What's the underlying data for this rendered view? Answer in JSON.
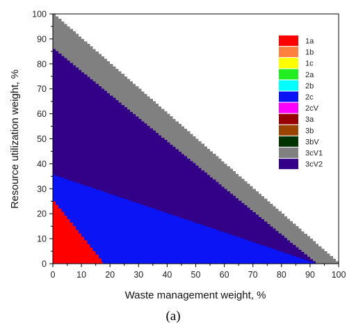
{
  "chart_data": {
    "type": "area",
    "xlabel": "Waste management weight, %",
    "ylabel": "Resource utilization weight, %",
    "xlim": [
      0,
      100
    ],
    "ylim": [
      0,
      100
    ],
    "xticks": [
      0,
      10,
      20,
      30,
      40,
      50,
      60,
      70,
      80,
      90,
      100
    ],
    "yticks": [
      0,
      10,
      20,
      30,
      40,
      50,
      60,
      70,
      80,
      90,
      100
    ],
    "legend_position": "top-right",
    "legend": [
      {
        "name": "1a",
        "color": "#ff0000"
      },
      {
        "name": "1b",
        "color": "#ff7f3f"
      },
      {
        "name": "1c",
        "color": "#ffff00"
      },
      {
        "name": "2a",
        "color": "#22ee22"
      },
      {
        "name": "2b",
        "color": "#00ffff"
      },
      {
        "name": "2c",
        "color": "#0a14f5"
      },
      {
        "name": "2cV",
        "color": "#ff00ff"
      },
      {
        "name": "3a",
        "color": "#990000"
      },
      {
        "name": "3b",
        "color": "#994400"
      },
      {
        "name": "3bV",
        "color": "#003300"
      },
      {
        "name": "3cV1",
        "color": "#808080"
      },
      {
        "name": "3cV2",
        "color": "#330088"
      }
    ],
    "regions": [
      {
        "name": "1a",
        "boundary_x": [
          0,
          17.5
        ],
        "boundary_y": [
          25,
          0
        ]
      },
      {
        "name": "2c",
        "boundary_x": [
          0,
          92
        ],
        "boundary_y": [
          35.5,
          0
        ]
      },
      {
        "name": "3cV2",
        "boundary_x": [
          0,
          92
        ],
        "boundary_y": [
          86,
          0
        ]
      },
      {
        "name": "3cV1",
        "boundary_x": [
          0,
          100
        ],
        "boundary_y": [
          100,
          0
        ]
      }
    ],
    "caption": "(a)"
  }
}
